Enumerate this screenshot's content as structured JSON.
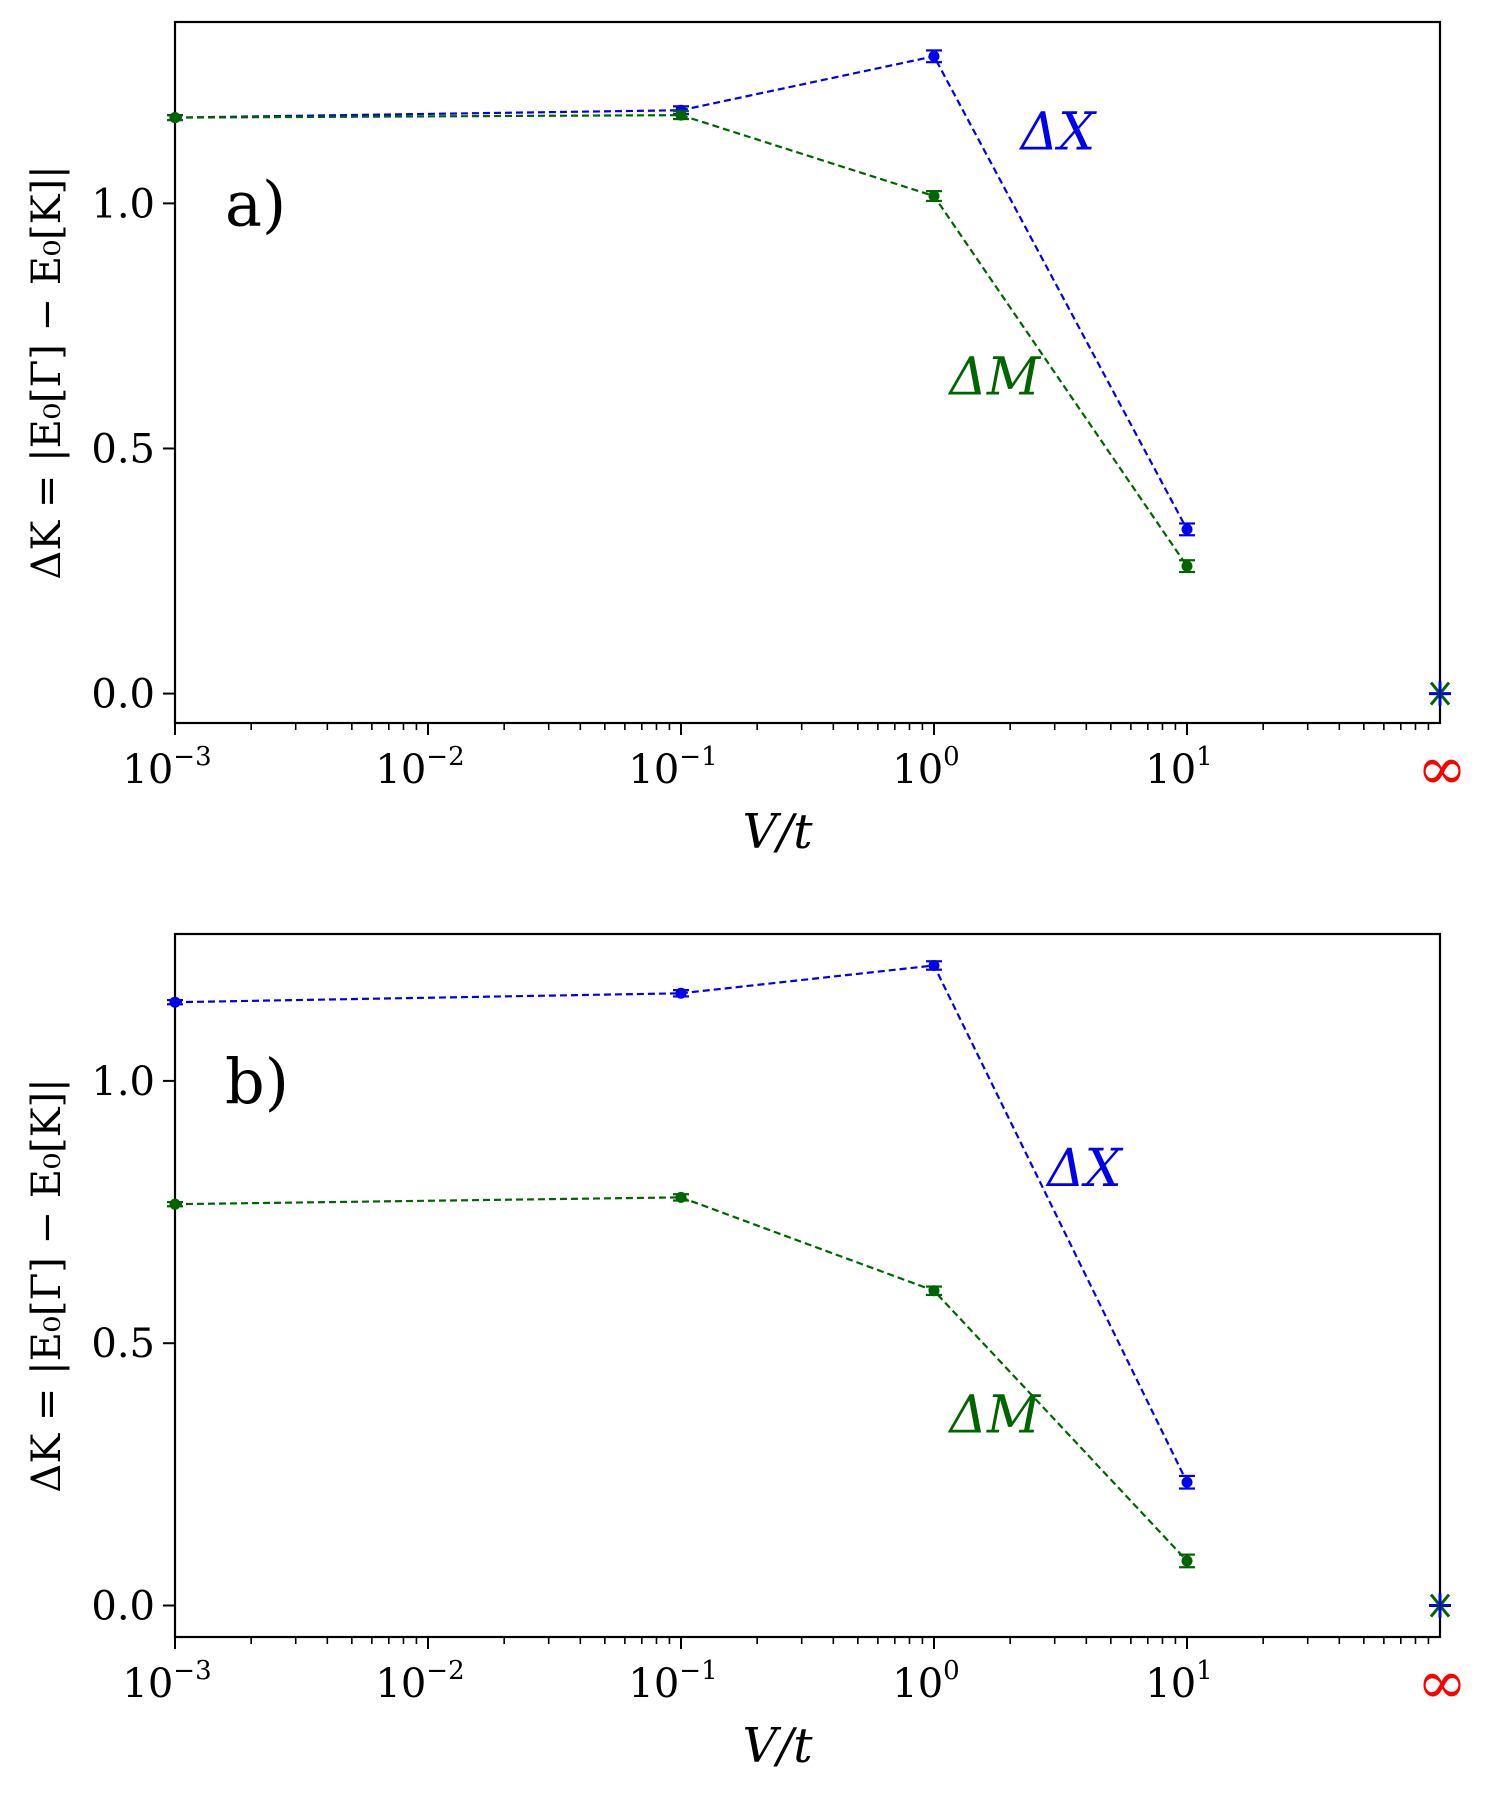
{
  "chart_data": [
    {
      "type": "line",
      "panel_label": "a)",
      "xscale": "log",
      "xlim": [
        0.001,
        100
      ],
      "ylim": [
        -0.06,
        1.37
      ],
      "xlabel": "V/t",
      "ylabel": "ΔK = |E₀[Γ] − E₀[K]|",
      "yticks": [
        0.0,
        0.5,
        1.0
      ],
      "ytick_labels": [
        "0.0",
        "0.5",
        "1.0"
      ],
      "xticks": [
        {
          "value": 0.001,
          "base": "10",
          "exp": "−3"
        },
        {
          "value": 0.01,
          "base": "10",
          "exp": "−2"
        },
        {
          "value": 0.1,
          "base": "10",
          "exp": "−1"
        },
        {
          "value": 1,
          "base": "10",
          "exp": "0"
        },
        {
          "value": 10,
          "base": "10",
          "exp": "1"
        }
      ],
      "inf_label": "∞",
      "series": [
        {
          "name": "ΔX",
          "color": "#0000ee",
          "x": [
            0.001,
            0.1,
            1,
            10
          ],
          "y": [
            1.175,
            1.19,
            1.3,
            0.335
          ],
          "err": [
            0.005,
            0.008,
            0.012,
            0.012
          ],
          "label_at": [
            2.2,
            1.11
          ]
        },
        {
          "name": "ΔM",
          "color": "#006400",
          "x": [
            0.001,
            0.1,
            1,
            10
          ],
          "y": [
            1.175,
            1.18,
            1.015,
            0.26
          ],
          "err": [
            0.005,
            0.008,
            0.01,
            0.012
          ],
          "label_at": [
            1.15,
            0.61
          ]
        }
      ],
      "limit_point": {
        "x": 100,
        "y": 0.0
      }
    },
    {
      "type": "line",
      "panel_label": "b)",
      "xscale": "log",
      "xlim": [
        0.001,
        100
      ],
      "ylim": [
        -0.06,
        1.28
      ],
      "xlabel": "V/t",
      "ylabel": "ΔK = |E₀[Γ] − E₀[K]|",
      "yticks": [
        0.0,
        0.5,
        1.0
      ],
      "ytick_labels": [
        "0.0",
        "0.5",
        "1.0"
      ],
      "xticks": [
        {
          "value": 0.001,
          "base": "10",
          "exp": "−3"
        },
        {
          "value": 0.01,
          "base": "10",
          "exp": "−2"
        },
        {
          "value": 0.1,
          "base": "10",
          "exp": "−1"
        },
        {
          "value": 1,
          "base": "10",
          "exp": "0"
        },
        {
          "value": 10,
          "base": "10",
          "exp": "1"
        }
      ],
      "inf_label": "∞",
      "series": [
        {
          "name": "ΔX",
          "color": "#0000ee",
          "x": [
            0.001,
            0.1,
            1,
            10
          ],
          "y": [
            1.15,
            1.167,
            1.22,
            0.235
          ],
          "err": [
            0.004,
            0.006,
            0.008,
            0.012
          ],
          "label_at": [
            2.8,
            0.8
          ]
        },
        {
          "name": "ΔM",
          "color": "#006400",
          "x": [
            0.001,
            0.1,
            1,
            10
          ],
          "y": [
            0.765,
            0.778,
            0.6,
            0.085
          ],
          "err": [
            0.004,
            0.006,
            0.008,
            0.012
          ],
          "label_at": [
            1.15,
            0.33
          ]
        }
      ],
      "limit_point": {
        "x": 100,
        "y": 0.0
      }
    }
  ]
}
